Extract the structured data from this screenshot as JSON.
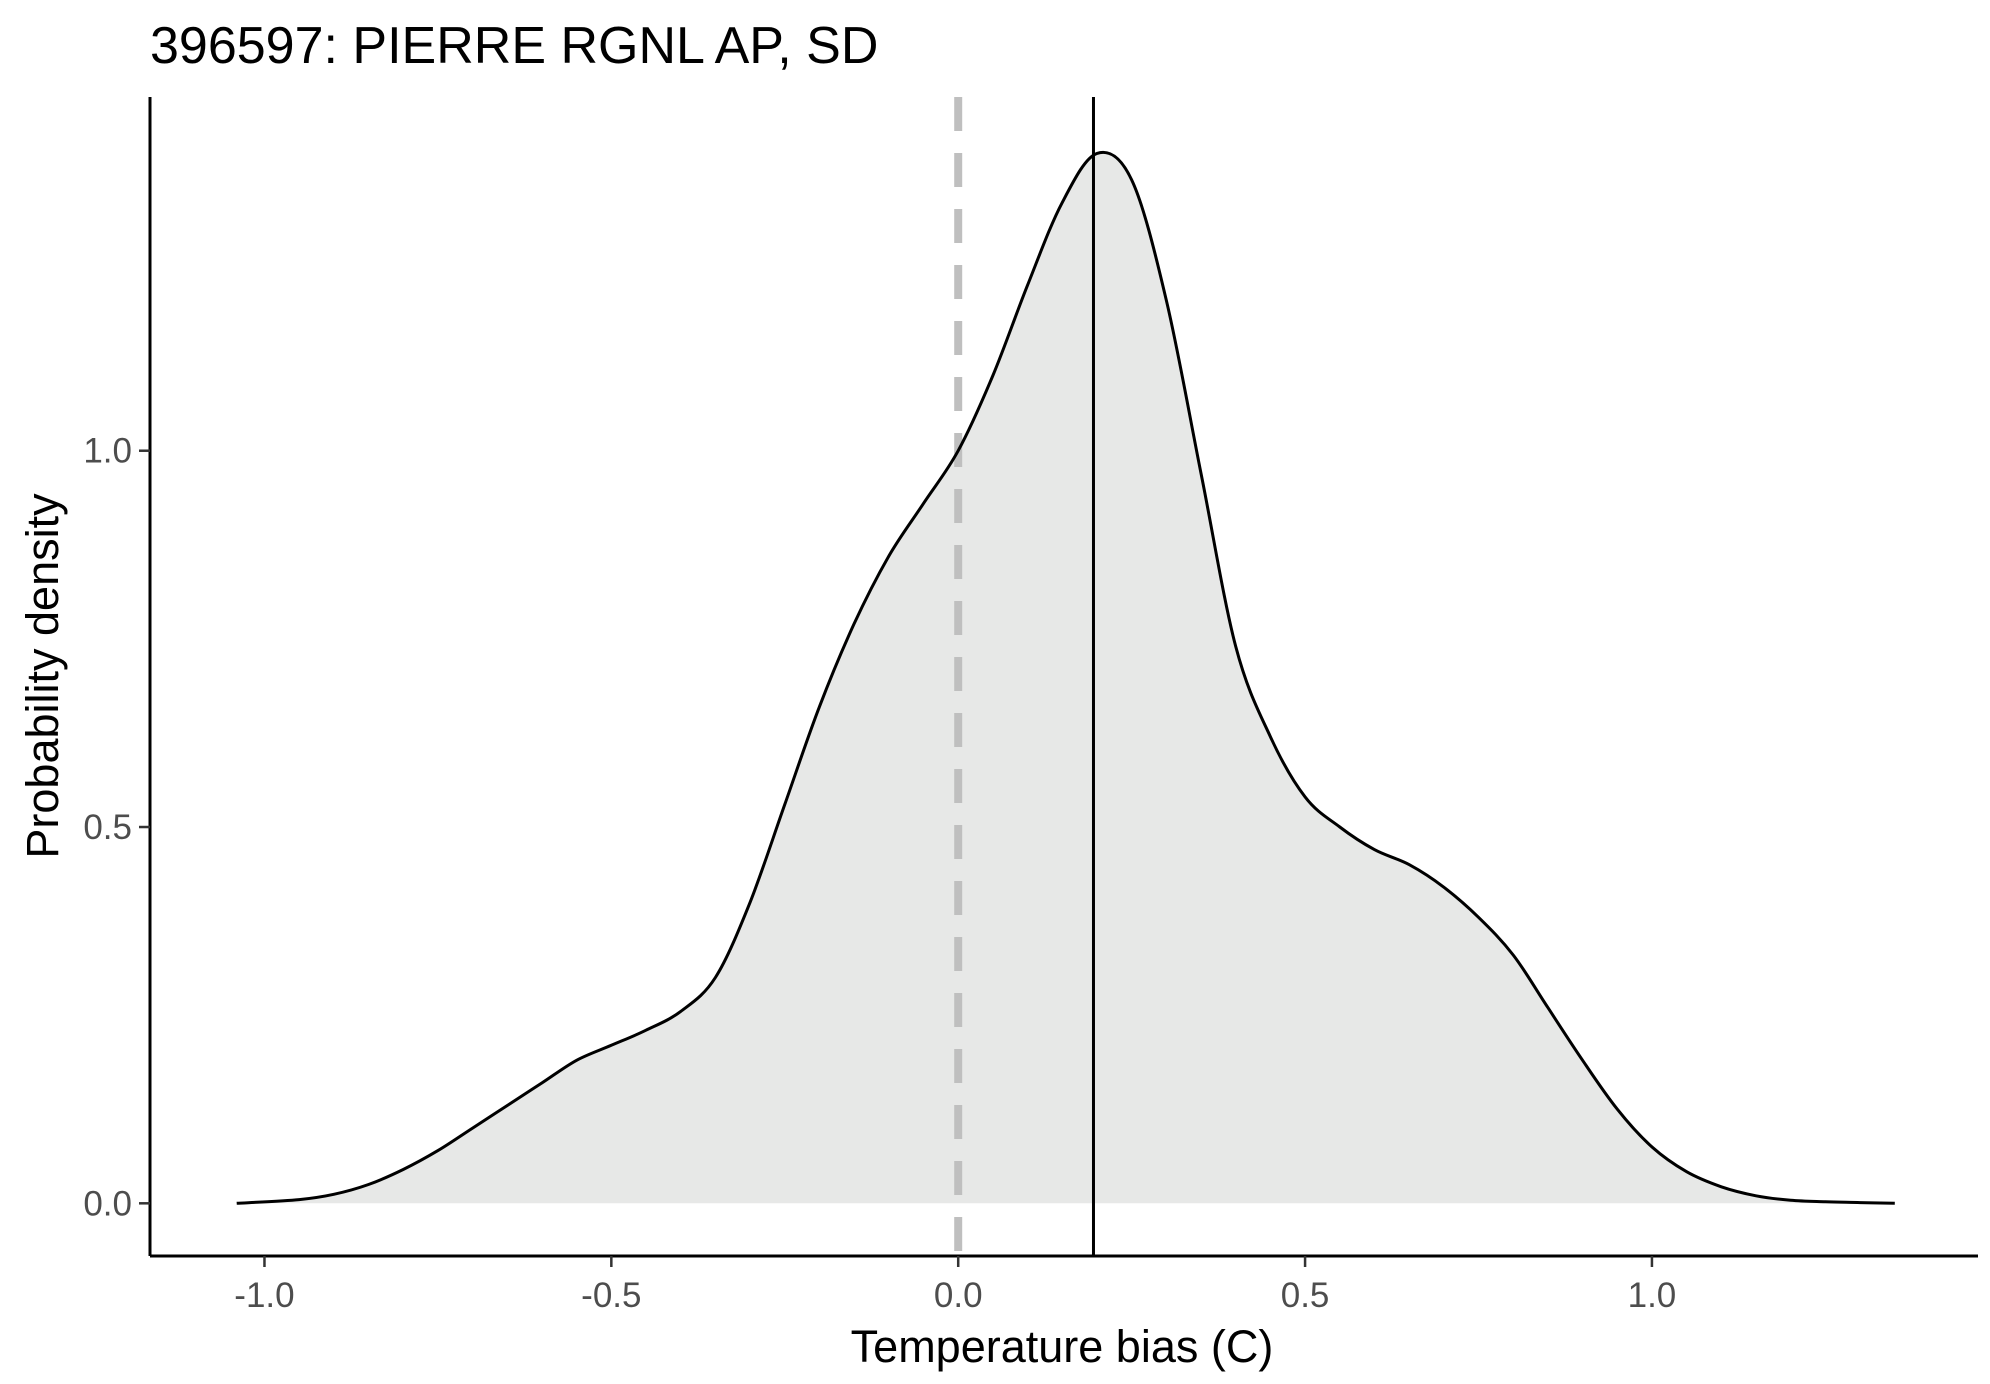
{
  "chart_data": {
    "type": "area",
    "title": "396597: PIERRE RGNL AP, SD",
    "xlabel": "Temperature bias (C)",
    "ylabel": "Probability density",
    "xlim": [
      -1.165,
      1.47
    ],
    "ylim": [
      -0.07,
      1.47
    ],
    "x_ticks": [
      -1.0,
      -0.5,
      0.0,
      0.5,
      1.0
    ],
    "x_tick_labels": [
      "-1.0",
      "-0.5",
      "0.0",
      "0.5",
      "1.0"
    ],
    "y_ticks": [
      0.0,
      0.5,
      1.0
    ],
    "y_tick_labels": [
      "0.0",
      "0.5",
      "1.0"
    ],
    "grid": false,
    "legend": "none",
    "colors": {
      "fill": "#e7e8e7",
      "line": "#000000",
      "reference": "#bfbfbf"
    },
    "reference_lines": [
      {
        "x": 0.0,
        "style": "dashed",
        "color": "#bfbfbf"
      },
      {
        "x": 0.195,
        "style": "solid",
        "color": "#000000"
      }
    ],
    "x": [
      -1.04,
      -0.95,
      -0.9,
      -0.85,
      -0.8,
      -0.75,
      -0.7,
      -0.65,
      -0.6,
      -0.55,
      -0.5,
      -0.45,
      -0.4,
      -0.35,
      -0.3,
      -0.25,
      -0.2,
      -0.15,
      -0.1,
      -0.05,
      0.0,
      0.05,
      0.1,
      0.15,
      0.2,
      0.25,
      0.3,
      0.35,
      0.4,
      0.45,
      0.5,
      0.55,
      0.6,
      0.65,
      0.7,
      0.75,
      0.8,
      0.85,
      0.9,
      0.95,
      1.0,
      1.05,
      1.1,
      1.15,
      1.2,
      1.25,
      1.3,
      1.35
    ],
    "y": [
      0.0,
      0.005,
      0.012,
      0.025,
      0.045,
      0.07,
      0.1,
      0.13,
      0.16,
      0.19,
      0.21,
      0.23,
      0.255,
      0.3,
      0.4,
      0.53,
      0.66,
      0.77,
      0.86,
      0.93,
      1.0,
      1.1,
      1.22,
      1.33,
      1.395,
      1.36,
      1.2,
      0.97,
      0.74,
      0.62,
      0.54,
      0.5,
      0.47,
      0.45,
      0.42,
      0.38,
      0.33,
      0.26,
      0.19,
      0.125,
      0.075,
      0.042,
      0.022,
      0.01,
      0.004,
      0.002,
      0.001,
      0.0
    ]
  }
}
